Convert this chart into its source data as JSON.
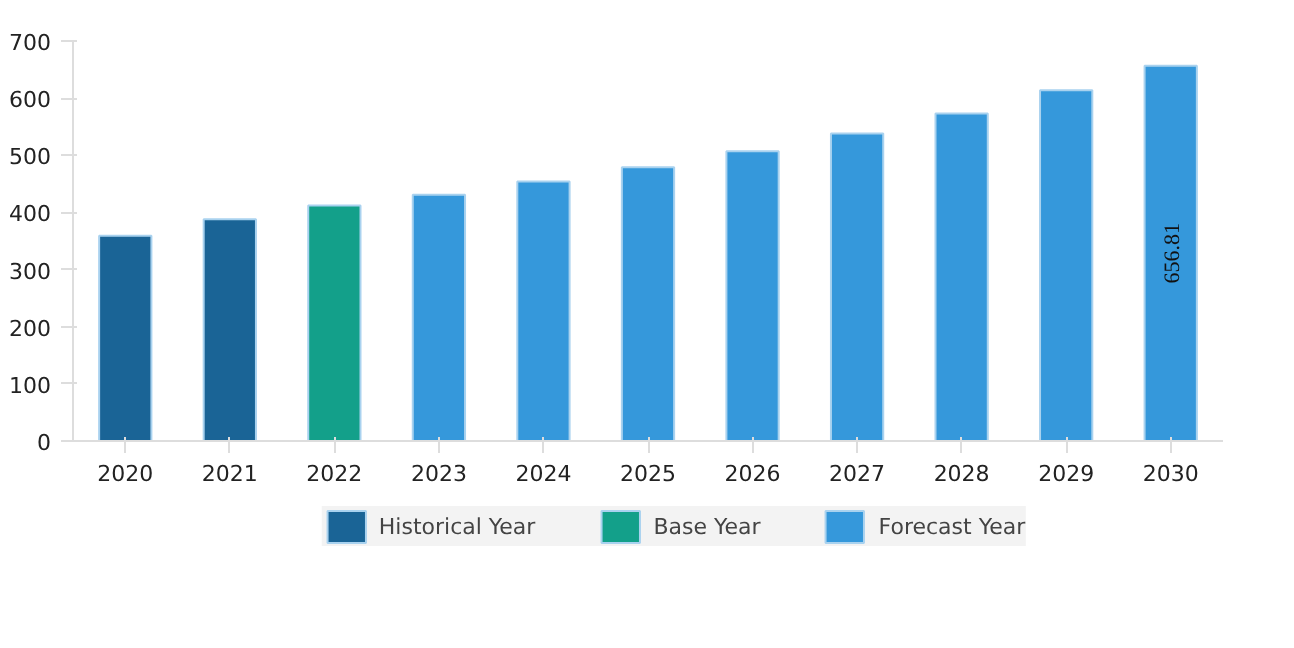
{
  "chart_data": {
    "type": "bar",
    "categories": [
      "2020",
      "2021",
      "2022",
      "2023",
      "2024",
      "2025",
      "2026",
      "2027",
      "2028",
      "2029",
      "2030"
    ],
    "series": [
      {
        "name": "Historical Year",
        "color": "#1a6496",
        "values": [
          359,
          388,
          null,
          null,
          null,
          null,
          null,
          null,
          null,
          null,
          null
        ]
      },
      {
        "name": "Base Year",
        "color": "#13a08a",
        "values": [
          null,
          null,
          412,
          null,
          null,
          null,
          null,
          null,
          null,
          null,
          null
        ]
      },
      {
        "name": "Forecast Year",
        "color": "#3598db",
        "values": [
          null,
          null,
          null,
          431,
          454,
          479,
          507,
          538,
          573,
          614,
          656.81
        ],
        "value_labels": [
          null,
          null,
          null,
          null,
          null,
          null,
          null,
          null,
          null,
          null,
          "656.81"
        ]
      }
    ],
    "ylim": [
      0,
      700
    ],
    "yticks": [
      0,
      100,
      200,
      300,
      400,
      500,
      600,
      700
    ],
    "grid": false,
    "legend": "bottom"
  }
}
